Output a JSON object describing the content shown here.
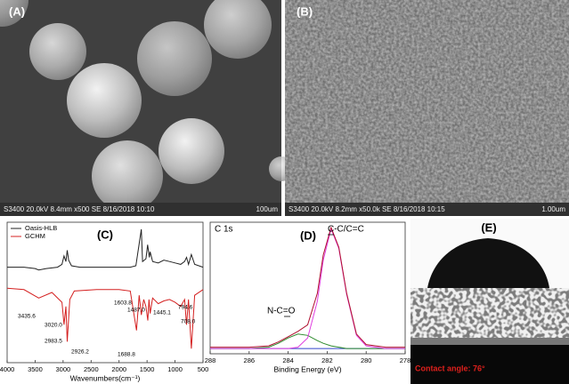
{
  "panels": [
    {
      "label": "(A)",
      "caption": "S3400 20.0kV 8.4mm x500 SE  8/16/2018 10:10",
      "scale": "100um"
    },
    {
      "label": "(B)",
      "caption": "S3400 20.0kV 8.2mm x50.0k SE  8/16/2018 10:15",
      "scale": "1.00um"
    }
  ],
  "chart_data": [
    {
      "type": "line",
      "label": "(C)",
      "xlabel": "Wavenumbers(cm⁻¹)",
      "xlim": [
        4000,
        500
      ],
      "xticks": [
        4000,
        3500,
        3000,
        2500,
        2000,
        1500,
        1000,
        500
      ],
      "ylim": [
        0,
        100
      ],
      "series": [
        {
          "name": "Oasis-HLB",
          "color": "#222222",
          "x": [
            4000,
            3700,
            3500,
            3435,
            3300,
            3100,
            3020,
            2983,
            2950,
            2926,
            2900,
            2850,
            2700,
            2400,
            2000,
            1800,
            1700,
            1603,
            1580,
            1520,
            1490,
            1460,
            1445,
            1400,
            1300,
            1200,
            1100,
            1000,
            900,
            830,
            794,
            760,
            708,
            650,
            500
          ],
          "values": [
            68,
            68,
            67,
            66,
            67,
            68,
            70,
            76,
            72,
            80,
            73,
            69,
            68,
            68,
            68,
            68,
            69,
            95,
            72,
            74,
            84,
            75,
            79,
            72,
            71,
            73,
            72,
            71,
            70,
            72,
            75,
            70,
            77,
            70,
            68
          ]
        },
        {
          "name": "GCHM",
          "color": "#d42020",
          "x": [
            4000,
            3700,
            3435,
            3200,
            3020,
            2983,
            2950,
            2926,
            2880,
            2800,
            2400,
            2000,
            1800,
            1688,
            1640,
            1603,
            1560,
            1520,
            1487,
            1465,
            1445,
            1400,
            1300,
            1200,
            1100,
            1000,
            900,
            830,
            794,
            760,
            708,
            650,
            500
          ],
          "values": [
            53,
            52,
            46,
            50,
            43,
            27,
            40,
            15,
            45,
            51,
            52,
            52,
            51,
            23,
            48,
            34,
            45,
            40,
            30,
            45,
            35,
            46,
            42,
            44,
            45,
            43,
            40,
            45,
            27,
            45,
            10,
            48,
            52
          ]
        }
      ],
      "annotations": [
        "3435.6",
        "3020.0",
        "2983.5",
        "2926.2",
        "1603.8",
        "1688.8",
        "1487.0",
        "1445.1",
        "794.6",
        "708.0"
      ]
    },
    {
      "type": "line",
      "label": "(D)",
      "xlabel": "Binding Energy (eV)",
      "xlim": [
        288,
        278
      ],
      "xticks": [
        288,
        286,
        284,
        282,
        280,
        278
      ],
      "ylim": [
        0,
        100
      ],
      "series": [
        {
          "color": "#3344cc",
          "x": [
            288,
            287,
            286,
            285,
            284.5,
            284,
            283.5,
            283,
            282.5,
            282.2,
            281.8,
            281.4,
            281,
            280.5,
            280,
            279,
            278
          ],
          "values": [
            4,
            4,
            4,
            4,
            4,
            4,
            4,
            4,
            4,
            4,
            4,
            4,
            4,
            4,
            4,
            4,
            4
          ]
        },
        {
          "color": "#2e8b2e",
          "x": [
            288,
            287,
            286,
            285,
            284.5,
            284,
            283.5,
            283,
            282.5,
            282.2,
            281.8,
            281.4,
            281,
            280.5,
            280,
            279,
            278
          ],
          "values": [
            4,
            4,
            4,
            5,
            8,
            12,
            15,
            14,
            10,
            8,
            6,
            5,
            4,
            4,
            4,
            4,
            4
          ]
        },
        {
          "color": "#e040e0",
          "x": [
            288,
            287,
            286,
            285,
            284.5,
            284,
            283.5,
            283,
            282.5,
            282.2,
            281.8,
            281.4,
            281,
            280.5,
            280,
            279,
            278
          ],
          "values": [
            4,
            4,
            4,
            4,
            4,
            4,
            5,
            12,
            40,
            71,
            95,
            80,
            45,
            14,
            6,
            4,
            4
          ]
        },
        {
          "color": "#b01030",
          "x": [
            288,
            287,
            286,
            285,
            284.5,
            284,
            283.5,
            283,
            282.5,
            282.2,
            281.8,
            281.4,
            281,
            280.5,
            280,
            279,
            278
          ],
          "values": [
            5,
            5,
            5,
            6,
            9,
            13,
            17,
            22,
            46,
            75,
            96,
            81,
            46,
            15,
            7,
            5,
            5
          ]
        }
      ],
      "annotations": [
        "C 1s",
        "C-C/C=C",
        "N-C=O"
      ]
    }
  ],
  "panel_e": {
    "label": "(E)",
    "caption": "Contact angle: 76°"
  }
}
